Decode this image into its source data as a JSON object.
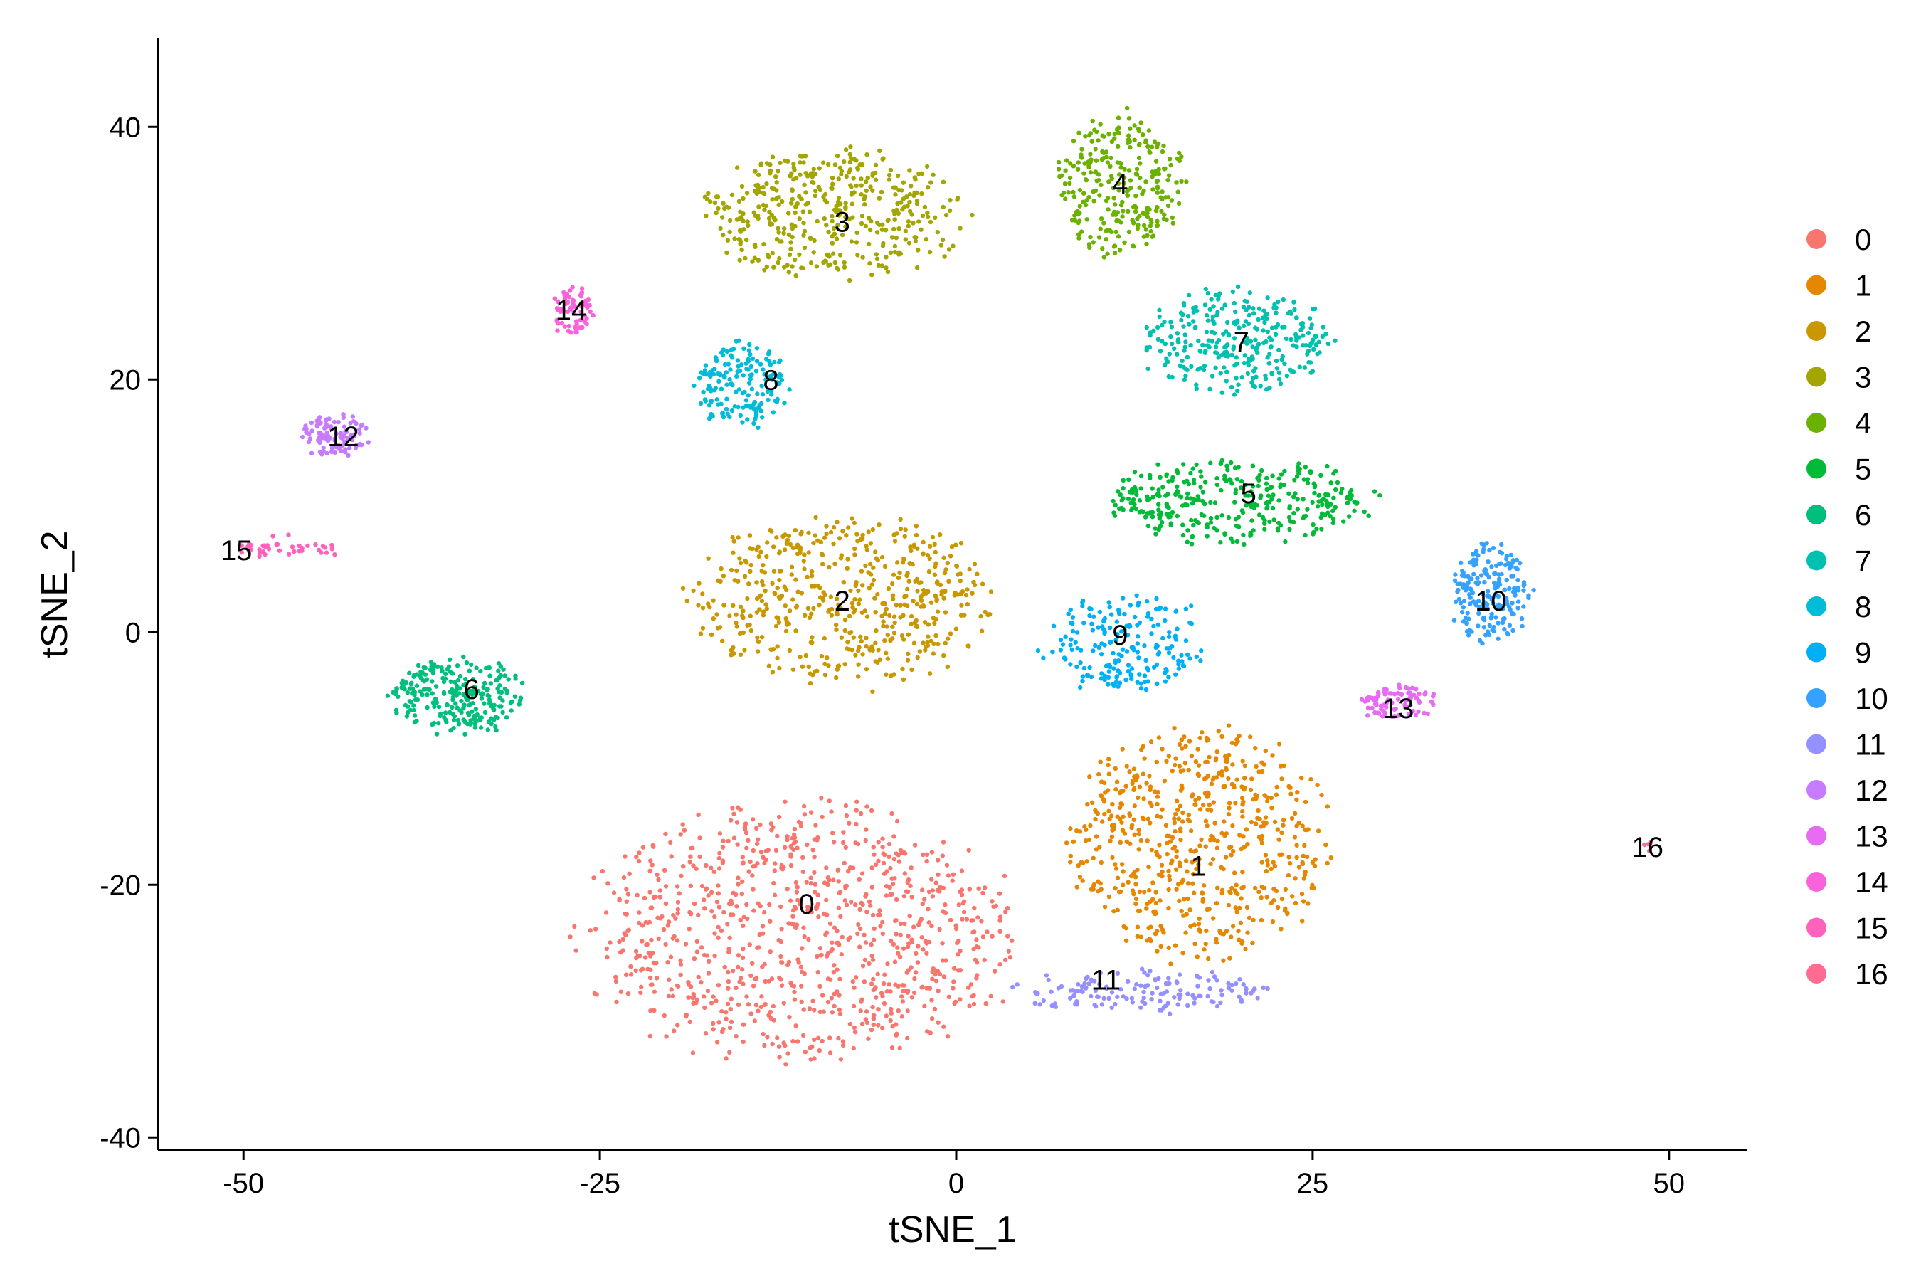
{
  "chart_data": {
    "type": "scatter",
    "xlabel": "tSNE_1",
    "ylabel": "tSNE_2",
    "xlim": [
      -56,
      55.5
    ],
    "ylim": [
      -41,
      47
    ],
    "x_ticks": [
      -50,
      -25,
      0,
      25,
      50
    ],
    "y_ticks": [
      -40,
      -20,
      0,
      20,
      40
    ],
    "grid": false,
    "legend_position": "right",
    "clusters": [
      {
        "name": "0",
        "color": "#F8766D",
        "label_pos": [
          -10.5,
          -21.5
        ],
        "shape": "blob",
        "center": [
          -11,
          -24
        ],
        "spread": [
          13,
          9
        ],
        "n": 900
      },
      {
        "name": "1",
        "color": "#E58700",
        "label_pos": [
          17,
          -18.5
        ],
        "shape": "blob",
        "center": [
          17,
          -17
        ],
        "spread": [
          8,
          8
        ],
        "n": 600
      },
      {
        "name": "2",
        "color": "#C99800",
        "label_pos": [
          -8,
          2.5
        ],
        "shape": "blob",
        "center": [
          -8,
          2.5
        ],
        "spread": [
          9,
          6
        ],
        "n": 520
      },
      {
        "name": "3",
        "color": "#A3A500",
        "label_pos": [
          -8,
          32.5
        ],
        "shape": "blob",
        "center": [
          -8.5,
          33
        ],
        "spread": [
          8,
          4.5
        ],
        "n": 420
      },
      {
        "name": "4",
        "color": "#6BB100",
        "label_pos": [
          11.5,
          35.5
        ],
        "shape": "blob",
        "center": [
          11.5,
          35.5
        ],
        "spread": [
          4,
          5
        ],
        "n": 280
      },
      {
        "name": "5",
        "color": "#00BA38",
        "label_pos": [
          20.5,
          11
        ],
        "shape": "blob",
        "center": [
          20,
          10.5
        ],
        "spread": [
          8,
          3
        ],
        "n": 340
      },
      {
        "name": "6",
        "color": "#00BF7D",
        "label_pos": [
          -34,
          -4.5
        ],
        "shape": "blob",
        "center": [
          -35,
          -5
        ],
        "spread": [
          4,
          2.8
        ],
        "n": 260
      },
      {
        "name": "7",
        "color": "#00C0AF",
        "label_pos": [
          20,
          23
        ],
        "shape": "blob",
        "center": [
          19.5,
          23
        ],
        "spread": [
          6,
          3.5
        ],
        "n": 300
      },
      {
        "name": "8",
        "color": "#00BCD8",
        "label_pos": [
          -13,
          20
        ],
        "shape": "blob",
        "center": [
          -15,
          19.5
        ],
        "spread": [
          3,
          3
        ],
        "n": 170
      },
      {
        "name": "9",
        "color": "#00B0F6",
        "label_pos": [
          11.5,
          -0.2
        ],
        "shape": "blob",
        "center": [
          12,
          -1
        ],
        "spread": [
          5,
          3.5
        ],
        "n": 200
      },
      {
        "name": "10",
        "color": "#35A2FF",
        "label_pos": [
          37.5,
          2.5
        ],
        "shape": "blob",
        "center": [
          37.5,
          3
        ],
        "spread": [
          2.5,
          3.5
        ],
        "n": 200
      },
      {
        "name": "11",
        "color": "#9590FF",
        "label_pos": [
          10.5,
          -27.5
        ],
        "shape": "blob",
        "center": [
          13,
          -28.5
        ],
        "spread": [
          8,
          1.5
        ],
        "n": 150
      },
      {
        "name": "12",
        "color": "#C77CFF",
        "label_pos": [
          -43,
          15.5
        ],
        "shape": "blob",
        "center": [
          -43.5,
          15.5
        ],
        "spread": [
          2,
          1.6
        ],
        "n": 100
      },
      {
        "name": "13",
        "color": "#E76BF3",
        "label_pos": [
          31,
          -6
        ],
        "shape": "blob",
        "center": [
          31,
          -5.5
        ],
        "spread": [
          2.5,
          1.2
        ],
        "n": 90
      },
      {
        "name": "14",
        "color": "#FA62DB",
        "label_pos": [
          -27,
          25.5
        ],
        "shape": "blob",
        "center": [
          -27,
          25.5
        ],
        "spread": [
          1.3,
          1.8
        ],
        "n": 70
      },
      {
        "name": "15",
        "color": "#FF62BC",
        "label_pos": [
          -50.5,
          6.5
        ],
        "shape": "line",
        "center": [
          -47,
          6.6
        ],
        "spread": [
          3.5,
          0.4
        ],
        "n": 40
      },
      {
        "name": "16",
        "color": "#FF6C91",
        "label_pos": [
          48.5,
          -17
        ],
        "shape": "blob",
        "center": [
          48.6,
          -17
        ],
        "spread": [
          0.4,
          0.3
        ],
        "n": 6
      }
    ]
  }
}
